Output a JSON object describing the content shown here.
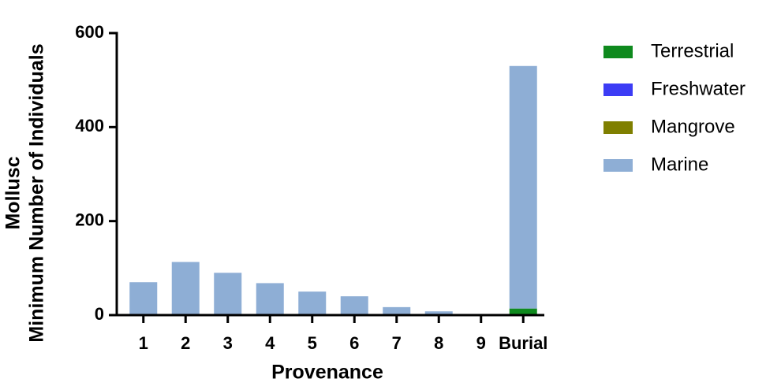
{
  "chart_data": {
    "type": "stacked_bar",
    "y_label": [
      "Mollusc",
      "Minimum Number of Individuals"
    ],
    "x_label": "Provenance",
    "categories": [
      "1",
      "2",
      "3",
      "4",
      "5",
      "6",
      "7",
      "8",
      "9",
      "Burial"
    ],
    "series": [
      {
        "name": "Terrestrial",
        "color": "#0f8a1e",
        "values": [
          0,
          0,
          0,
          0,
          0,
          0,
          0,
          0,
          0,
          14
        ]
      },
      {
        "name": "Freshwater",
        "color": "#3c3cf5",
        "values": [
          0,
          0,
          0,
          0,
          0,
          0,
          0,
          0,
          0,
          0
        ]
      },
      {
        "name": "Mangrove",
        "color": "#7f7f00",
        "values": [
          0,
          0,
          0,
          0,
          0,
          0,
          0,
          0,
          0,
          0
        ]
      },
      {
        "name": "Marine",
        "color": "#8eaed5",
        "values": [
          70,
          113,
          90,
          68,
          50,
          40,
          17,
          8,
          1,
          516
        ]
      }
    ],
    "ylim": [
      0,
      600
    ],
    "yticks": [
      0,
      200,
      400,
      600
    ]
  }
}
